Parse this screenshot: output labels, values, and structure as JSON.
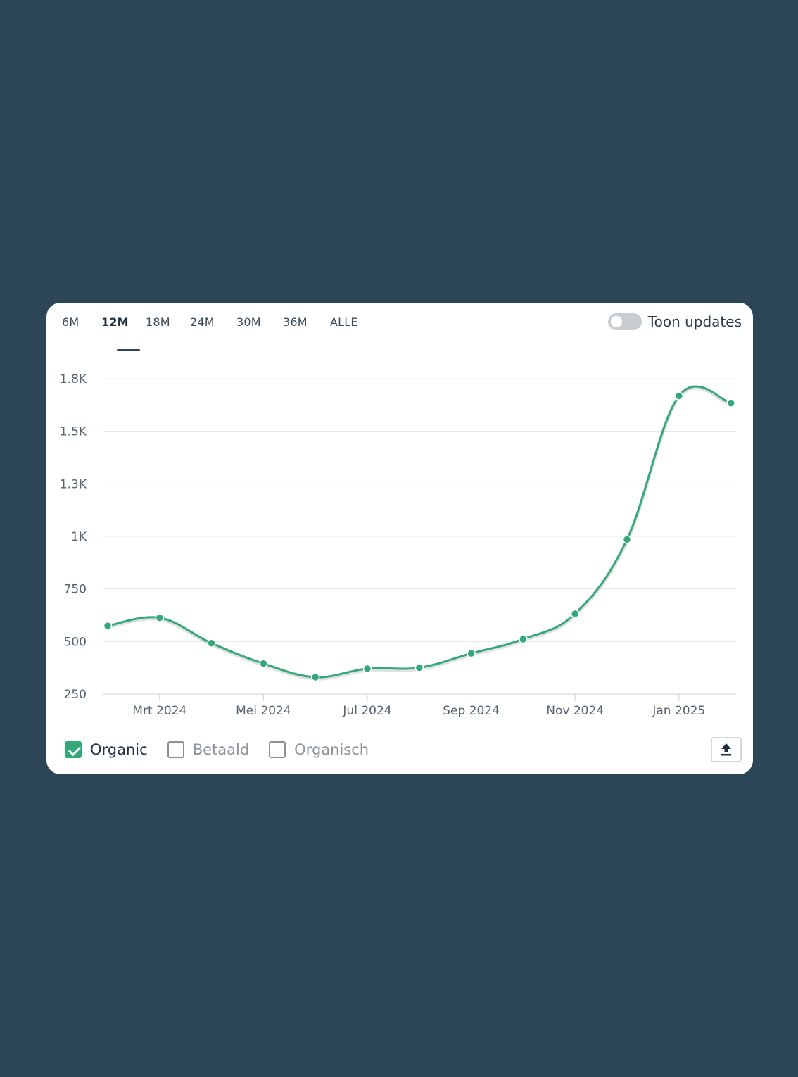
{
  "tabs": [
    {
      "label": "6M",
      "active": false
    },
    {
      "label": "12M",
      "active": true
    },
    {
      "label": "18M",
      "active": false
    },
    {
      "label": "24M",
      "active": false
    },
    {
      "label": "30M",
      "active": false
    },
    {
      "label": "36M",
      "active": false
    },
    {
      "label": "ALLE",
      "active": false
    }
  ],
  "toggle": {
    "label": "Toon updates",
    "on": false
  },
  "legend": [
    {
      "label": "Organic",
      "checked": true
    },
    {
      "label": "Betaald",
      "checked": false
    },
    {
      "label": "Organisch",
      "checked": false
    }
  ],
  "export_icon": "upload-icon",
  "colors": {
    "line": "#34a977",
    "background": "#2d4657",
    "card": "#ffffff"
  },
  "chart_data": {
    "type": "line",
    "x": [
      "2024-02",
      "2024-03",
      "2024-04",
      "2024-05",
      "2024-06",
      "2024-07",
      "2024-08",
      "2024-09",
      "2024-10",
      "2024-11",
      "2024-12",
      "2025-01",
      "2025-02"
    ],
    "series": [
      {
        "name": "Organic",
        "values": [
          585,
          625,
          500,
          400,
          333,
          375,
          380,
          450,
          520,
          645,
          1010,
          1715,
          1680
        ]
      }
    ],
    "xticks": [
      "Mrt 2024",
      "Mei 2024",
      "Jul 2024",
      "Sep 2024",
      "Nov 2024",
      "Jan 2025"
    ],
    "yticks": [
      "250",
      "500",
      "750",
      "1K",
      "1.3K",
      "1.5K",
      "1.8K"
    ],
    "ylim": [
      250,
      1800
    ],
    "grid": true,
    "legend": "bottom-left"
  }
}
